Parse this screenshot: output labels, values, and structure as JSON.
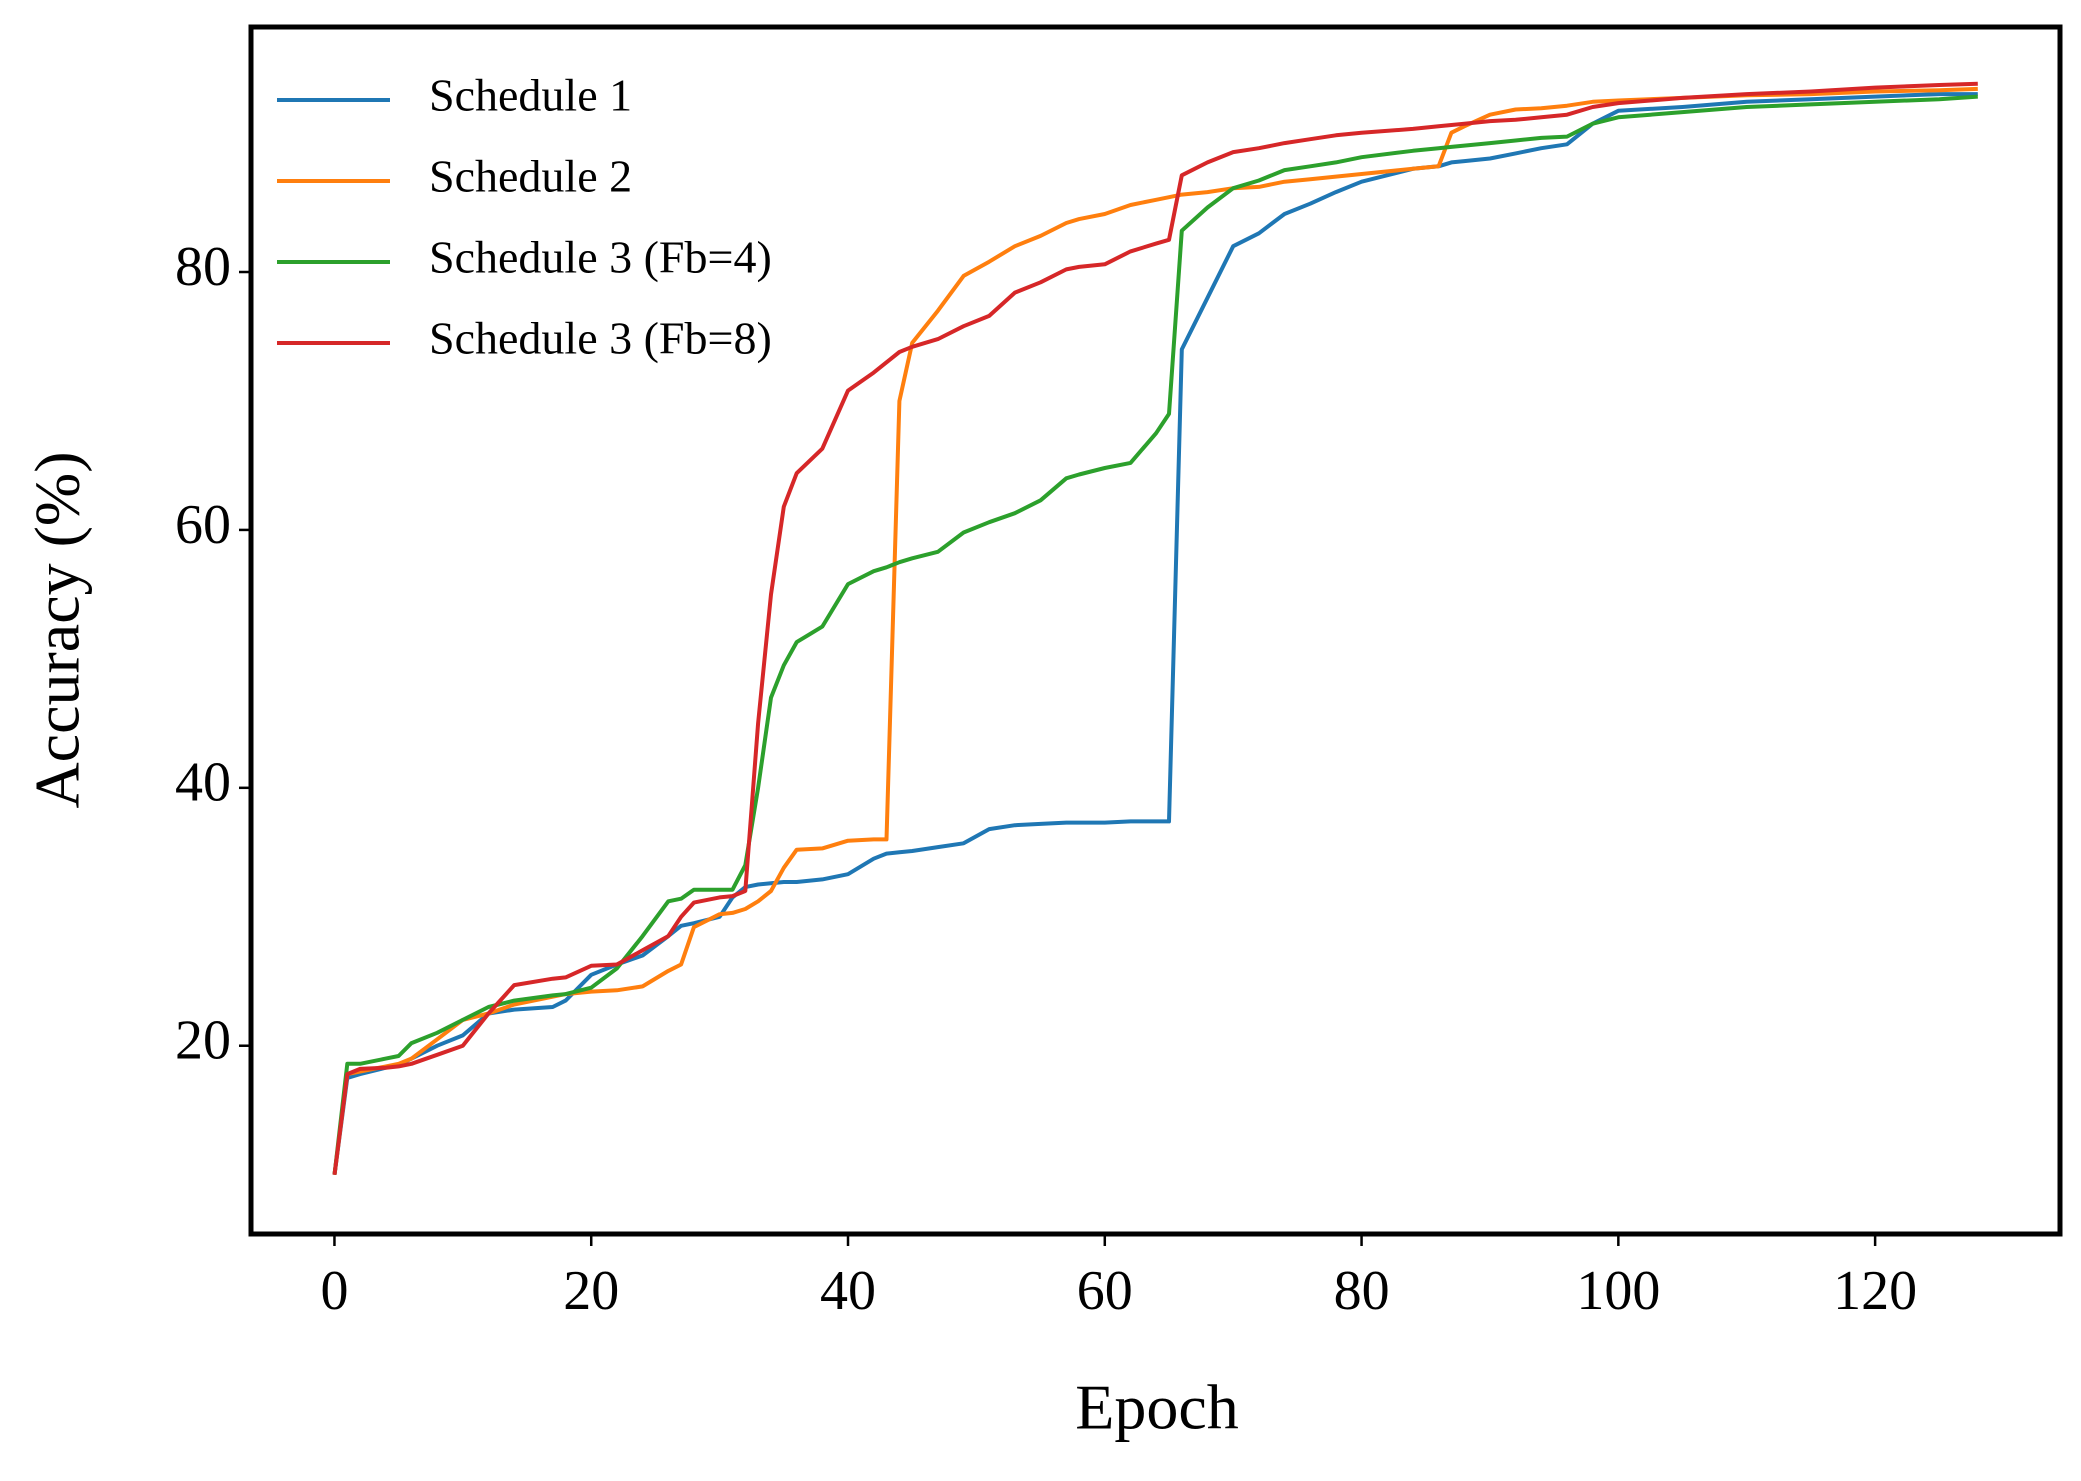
{
  "chart_data": {
    "type": "line",
    "xlabel": "Epoch",
    "ylabel": "Accuracy (%)",
    "x": [
      0,
      1,
      2,
      4,
      5,
      6,
      8,
      10,
      12,
      14,
      17,
      18,
      20,
      22,
      24,
      26,
      27,
      28,
      30,
      31,
      32,
      33,
      34,
      35,
      36,
      38,
      40,
      42,
      43,
      44,
      45,
      47,
      49,
      51,
      53,
      55,
      57,
      58,
      60,
      62,
      64,
      65,
      66,
      68,
      70,
      72,
      74,
      76,
      78,
      80,
      84,
      86,
      87,
      88,
      90,
      92,
      94,
      96,
      98,
      100,
      105,
      110,
      115,
      120,
      125,
      128
    ],
    "series": [
      {
        "name": "Schedule 1",
        "color": "#1f77b4",
        "values": [
          10,
          17.5,
          17.8,
          18.3,
          18.5,
          19,
          20,
          20.8,
          22.5,
          22.8,
          23,
          23.5,
          25.5,
          26.3,
          27,
          28.5,
          29.3,
          29.5,
          30,
          31.5,
          32.3,
          32.5,
          32.6,
          32.7,
          32.7,
          32.9,
          33.3,
          34.5,
          34.9,
          35,
          35.1,
          35.4,
          35.7,
          36.8,
          37.1,
          37.2,
          37.3,
          37.3,
          37.3,
          37.4,
          37.4,
          37.4,
          74,
          78,
          82,
          83,
          84.5,
          85.3,
          86.2,
          87,
          88,
          88.2,
          88.5,
          88.6,
          88.8,
          89.2,
          89.6,
          89.9,
          91.5,
          92.5,
          92.8,
          93.2,
          93.4,
          93.6,
          93.8,
          93.8
        ]
      },
      {
        "name": "Schedule 2",
        "color": "#ff7f0e",
        "values": [
          10,
          17.8,
          18,
          18.4,
          18.6,
          19,
          20.5,
          22,
          22.5,
          23.2,
          23.8,
          24,
          24.2,
          24.3,
          24.6,
          25.8,
          26.3,
          29.2,
          30.2,
          30.3,
          30.6,
          31.2,
          32,
          33.8,
          35.2,
          35.3,
          35.9,
          36,
          36,
          70,
          74.5,
          77,
          79.7,
          80.8,
          82,
          82.8,
          83.8,
          84.1,
          84.5,
          85.2,
          85.6,
          85.8,
          86,
          86.2,
          86.5,
          86.6,
          87,
          87.2,
          87.4,
          87.6,
          88,
          88.2,
          90.8,
          91.3,
          92.2,
          92.6,
          92.7,
          92.9,
          93.2,
          93.3,
          93.5,
          93.7,
          93.8,
          94,
          94.1,
          94.2
        ]
      },
      {
        "name": "Schedule 3 (Fb=4)",
        "color": "#2ca02c",
        "values": [
          10,
          18.6,
          18.6,
          19,
          19.2,
          20.2,
          21,
          22,
          23,
          23.5,
          23.9,
          24,
          24.5,
          26,
          28.5,
          31.2,
          31.4,
          32.1,
          32.1,
          32.1,
          34,
          40,
          47,
          49.5,
          51.3,
          52.5,
          55.8,
          56.8,
          57.1,
          57.5,
          57.8,
          58.3,
          59.8,
          60.6,
          61.3,
          62.3,
          64,
          64.3,
          64.8,
          65.2,
          67.5,
          69,
          83.2,
          85,
          86.5,
          87.1,
          87.9,
          88.2,
          88.5,
          88.9,
          89.4,
          89.6,
          89.7,
          89.8,
          90,
          90.2,
          90.4,
          90.5,
          91.5,
          92,
          92.4,
          92.8,
          93,
          93.2,
          93.4,
          93.6
        ]
      },
      {
        "name": "Schedule 3 (Fb=8)",
        "color": "#d62728",
        "values": [
          10,
          17.8,
          18.2,
          18.3,
          18.4,
          18.6,
          19.3,
          20,
          22.5,
          24.7,
          25.2,
          25.3,
          26.2,
          26.3,
          27.4,
          28.5,
          30,
          31.1,
          31.5,
          31.6,
          32,
          45,
          55,
          61.8,
          64.4,
          66.3,
          70.8,
          72.2,
          73,
          73.8,
          74.2,
          74.8,
          75.8,
          76.6,
          78.4,
          79.2,
          80.2,
          80.4,
          80.6,
          81.6,
          82.2,
          82.5,
          87.5,
          88.5,
          89.3,
          89.6,
          90,
          90.3,
          90.6,
          90.8,
          91.1,
          91.3,
          91.4,
          91.5,
          91.7,
          91.8,
          92,
          92.2,
          92.8,
          93.1,
          93.5,
          93.8,
          94,
          94.3,
          94.5,
          94.6
        ]
      }
    ],
    "xlim": [
      -6.5,
      134.4
    ],
    "ylim": [
      5.4,
      99.0
    ],
    "xticks": [
      0,
      20,
      40,
      60,
      80,
      100,
      120
    ],
    "yticks": [
      20,
      40,
      60,
      80
    ],
    "legend": "upper left",
    "grid": false
  }
}
